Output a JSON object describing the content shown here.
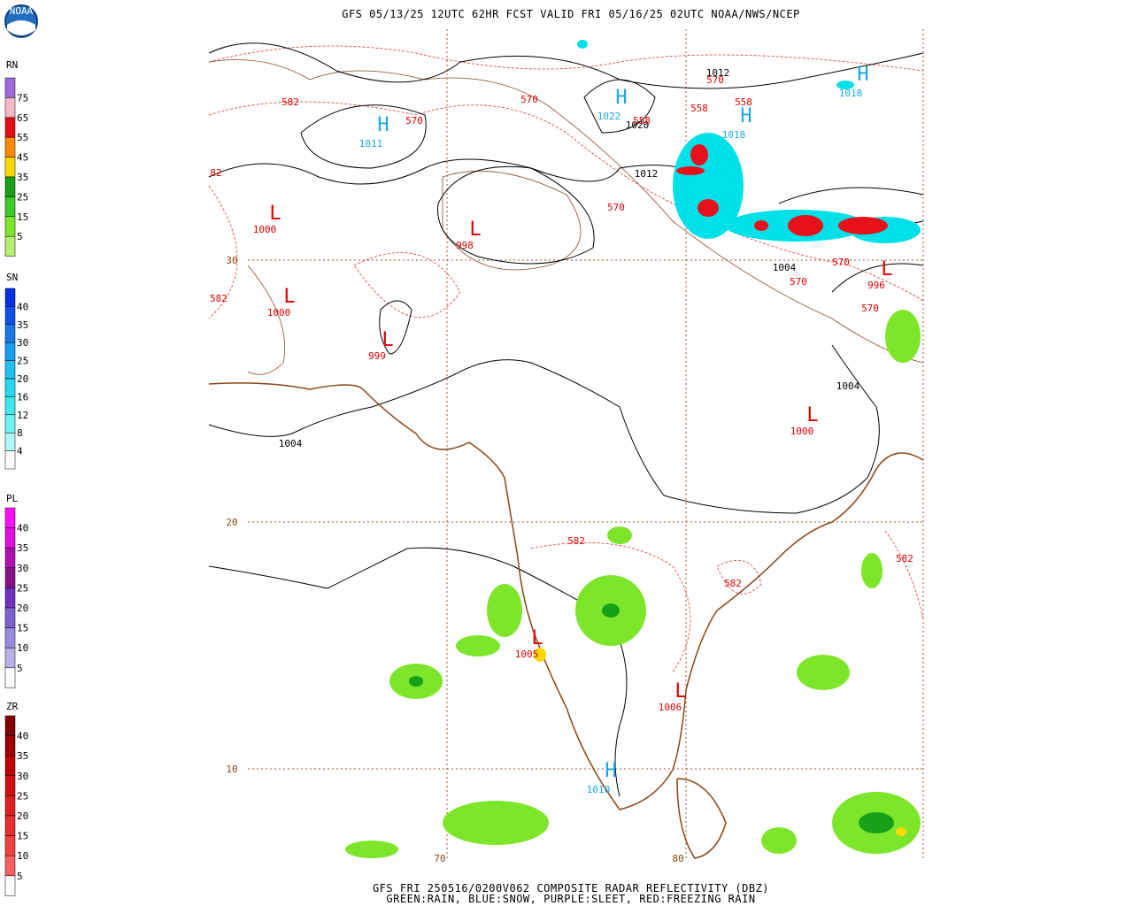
{
  "header": {
    "title": "GFS 05/13/25 12UTC 62HR FCST VALID FRI 05/16/25 02UTC NOAA/NWS/NCEP"
  },
  "footer": {
    "line1": "GFS FRI 250516/0200V062 COMPOSITE RADAR REFLECTIVITY (DBZ)",
    "line2": "GREEN:RAIN, BLUE:SNOW, PURPLE:SLEET, RED:FREEZING RAIN"
  },
  "logo": {
    "label": "NOAA"
  },
  "legends": [
    {
      "title": "RN",
      "levels": [
        "75",
        "65",
        "55",
        "45",
        "35",
        "25",
        "15",
        "5"
      ]
    },
    {
      "title": "SN",
      "levels": [
        "40",
        "35",
        "30",
        "25",
        "20",
        "16",
        "12",
        "8",
        "4"
      ]
    },
    {
      "title": "PL",
      "levels": [
        "40",
        "35",
        "30",
        "25",
        "20",
        "15",
        "10",
        "5"
      ]
    },
    {
      "title": "ZR",
      "levels": [
        "40",
        "35",
        "30",
        "25",
        "20",
        "15",
        "10",
        "5"
      ]
    }
  ],
  "map": {
    "isobar_labels": [
      "1012",
      "1020",
      "1012",
      "1004",
      "1004",
      "1004"
    ],
    "height_labels": [
      "582",
      "570",
      "570",
      "570",
      "558",
      "558",
      "558",
      "570",
      "82",
      "582",
      "570",
      "570",
      "570",
      "582",
      "582",
      "582"
    ],
    "highs": [
      {
        "symbol": "H",
        "pressure": "1022"
      },
      {
        "symbol": "H",
        "pressure": "1011"
      },
      {
        "symbol": "H",
        "pressure": "1018"
      },
      {
        "symbol": "H",
        "pressure": "1018"
      },
      {
        "symbol": "H",
        "pressure": "1010"
      }
    ],
    "lows": [
      {
        "symbol": "L",
        "pressure": "1000"
      },
      {
        "symbol": "L",
        "pressure": "998"
      },
      {
        "symbol": "L",
        "pressure": "1000"
      },
      {
        "symbol": "L",
        "pressure": "999"
      },
      {
        "symbol": "L",
        "pressure": "1000"
      },
      {
        "symbol": "L",
        "pressure": "996"
      },
      {
        "symbol": "L",
        "pressure": "1006"
      },
      {
        "symbol": "L",
        "pressure": "1005"
      }
    ],
    "lat_labels": [
      "30",
      "20",
      "10"
    ],
    "lon_labels": [
      "70",
      "80"
    ]
  }
}
